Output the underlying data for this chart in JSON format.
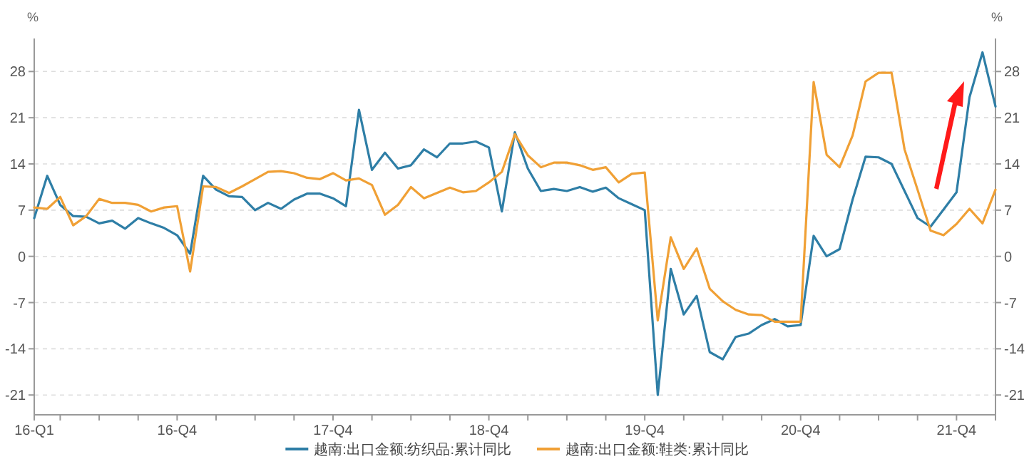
{
  "chart_data": {
    "type": "line",
    "categories": [
      "16-Q1",
      null,
      null,
      null,
      null,
      null,
      null,
      null,
      null,
      null,
      null,
      "16-Q4",
      null,
      null,
      null,
      null,
      null,
      null,
      null,
      null,
      null,
      null,
      null,
      "17-Q4",
      null,
      null,
      null,
      null,
      null,
      null,
      null,
      null,
      null,
      null,
      null,
      "18-Q4",
      null,
      null,
      null,
      null,
      null,
      null,
      null,
      null,
      null,
      null,
      null,
      "19-Q4",
      null,
      null,
      null,
      null,
      null,
      null,
      null,
      null,
      null,
      null,
      null,
      "20-Q4",
      null,
      null,
      null,
      null,
      null,
      null,
      null,
      null,
      null,
      null,
      null,
      "21-Q4",
      null,
      null,
      null
    ],
    "series": [
      {
        "name": "越南:出口金额:纺织品:累计同比",
        "color": "#2e7ea6",
        "values": [
          5.8,
          12.2,
          7.8,
          6.1,
          6.0,
          5.0,
          5.4,
          4.2,
          5.8,
          5.0,
          4.3,
          3.2,
          0.4,
          12.2,
          10.1,
          9.1,
          9.0,
          7.0,
          8.1,
          7.2,
          8.6,
          9.5,
          9.5,
          8.8,
          7.6,
          22.2,
          13.1,
          15.7,
          13.3,
          13.8,
          16.2,
          15.0,
          17.1,
          17.1,
          17.4,
          16.5,
          6.8,
          18.8,
          13.3,
          9.9,
          10.2,
          9.9,
          10.5,
          9.8,
          10.4,
          8.8,
          7.9,
          7.0,
          -21.0,
          -1.9,
          -8.8,
          -6.0,
          -14.5,
          -15.6,
          -12.2,
          -11.7,
          -10.4,
          -9.5,
          -10.6,
          -10.4,
          3.1,
          0.0,
          1.1,
          8.6,
          15.1,
          15.0,
          14.0,
          9.9,
          5.8,
          4.5,
          7.1,
          9.7,
          24.1,
          30.9,
          22.7
        ]
      },
      {
        "name": "越南:出口金额:鞋类:累计同比",
        "color": "#f0a035",
        "values": [
          7.4,
          7.2,
          9.0,
          4.7,
          6.1,
          8.7,
          8.1,
          8.1,
          7.8,
          6.8,
          7.4,
          7.6,
          -2.3,
          10.6,
          10.5,
          9.6,
          10.6,
          11.7,
          12.8,
          12.9,
          12.6,
          11.9,
          11.7,
          12.6,
          11.5,
          11.8,
          10.8,
          6.3,
          7.8,
          10.5,
          8.8,
          9.6,
          10.4,
          9.7,
          9.9,
          11.2,
          12.8,
          18.5,
          15.3,
          13.5,
          14.2,
          14.2,
          13.8,
          13.1,
          13.5,
          11.2,
          12.5,
          12.7,
          -9.7,
          2.9,
          -1.9,
          1.2,
          -4.9,
          -6.8,
          -8.1,
          -8.8,
          -8.9,
          -9.9,
          -9.9,
          -9.9,
          26.4,
          15.4,
          13.5,
          18.3,
          26.5,
          27.8,
          27.8,
          16.2,
          10.1,
          3.9,
          3.2,
          4.9,
          7.2,
          5.0,
          10.1
        ]
      }
    ],
    "ylabel": "%",
    "y2label": "%",
    "ylim": [
      -24,
      33
    ],
    "yticks": [
      -21,
      -14,
      -7,
      0,
      7,
      14,
      21,
      28
    ],
    "y2lim": [
      -24,
      33
    ],
    "y2ticks": [
      -21,
      -14,
      -7,
      0,
      7,
      14,
      21,
      28
    ],
    "grid": "y",
    "legend": "bottom",
    "marker": "none",
    "line_style": "solid"
  }
}
